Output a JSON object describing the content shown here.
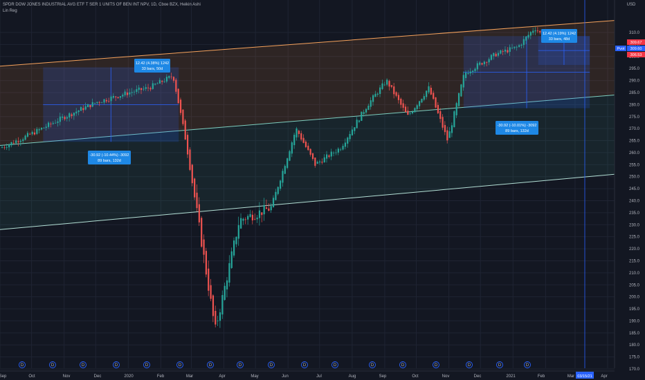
{
  "header": {
    "symbol_line": "SPDR DOW JONES INDUSTRIAL AVG ETF T SER 1 UNITS OF BEN INT NPV, 1D, Cboe BZX, Heikin Ashi",
    "indicator": "Lin Reg"
  },
  "price_axis": {
    "currency": "USD",
    "ticks": [
      310,
      305,
      300,
      295,
      290,
      285,
      280,
      275,
      270,
      265,
      260,
      255,
      250,
      245,
      240,
      235,
      230,
      225,
      220,
      215,
      210,
      205,
      200,
      195,
      190,
      185,
      180,
      175,
      170
    ],
    "price_tags": [
      {
        "text": "309.67",
        "color": "#f23645"
      },
      {
        "text": "309.60",
        "color": "#2962ff"
      },
      {
        "text": "306.53",
        "color": "#f23645"
      }
    ],
    "pivot_label": "Pvot"
  },
  "time_axis": {
    "labels": [
      "Sep",
      "Oct",
      "Nov",
      "Dec",
      "2020",
      "Feb",
      "Mar",
      "Apr",
      "May",
      "Jun",
      "Jul",
      "Aug",
      "Sep",
      "Oct",
      "Nov",
      "Dec",
      "2021",
      "Feb",
      "Mar",
      "Apr"
    ],
    "crosshair_date": "03/15/21"
  },
  "dividend_marker": "D",
  "measurements": [
    {
      "line1": "12.42 (4.38%) 1242",
      "line2": "33 bars, 50d"
    },
    {
      "line1": "-30.92 (-10.44%) -3092",
      "line2": "89 bars, 132d"
    },
    {
      "line1": "12.42 (4.19%) 1242",
      "line2": "33 bars, 48d"
    },
    {
      "line1": "-30.92 (-10.01%) -3092",
      "line2": "89 bars, 132d"
    }
  ],
  "colors": {
    "background": "#131722",
    "up": "#26a69a",
    "down": "#ef5350",
    "upper_channel": "#f7a35c",
    "mid_channel": "#7ecfc0",
    "lower_channel": "#b4e0d6",
    "measure_box": "#2962ff",
    "label_bg": "#1e88e5"
  },
  "chart_data": {
    "type": "candlestick",
    "style": "Heikin Ashi",
    "interval": "1D",
    "ylim": [
      170,
      315
    ],
    "x": [
      "2019-09-01",
      "2019-10-01",
      "2019-11-01",
      "2019-12-01",
      "2020-01-01",
      "2020-01-20",
      "2020-02-12",
      "2020-02-24",
      "2020-03-23",
      "2020-04-15",
      "2020-05-15",
      "2020-06-08",
      "2020-06-26",
      "2020-07-20",
      "2020-08-15",
      "2020-09-02",
      "2020-09-22",
      "2020-10-12",
      "2020-10-30",
      "2020-11-15",
      "2020-12-15",
      "2021-01-05",
      "2021-01-21",
      "2021-02-01"
    ],
    "close": [
      262,
      268,
      275,
      281,
      285,
      287,
      292,
      265,
      186,
      232,
      237,
      270,
      255,
      262,
      280,
      290,
      275,
      287,
      265,
      293,
      301,
      304,
      312,
      307
    ],
    "linreg_channel": {
      "upper": {
        "start": 296,
        "end": 315
      },
      "middle": {
        "start": 263,
        "end": 284
      },
      "lower": {
        "start": 228,
        "end": 251
      }
    },
    "grid": true,
    "legend": "top-left"
  }
}
